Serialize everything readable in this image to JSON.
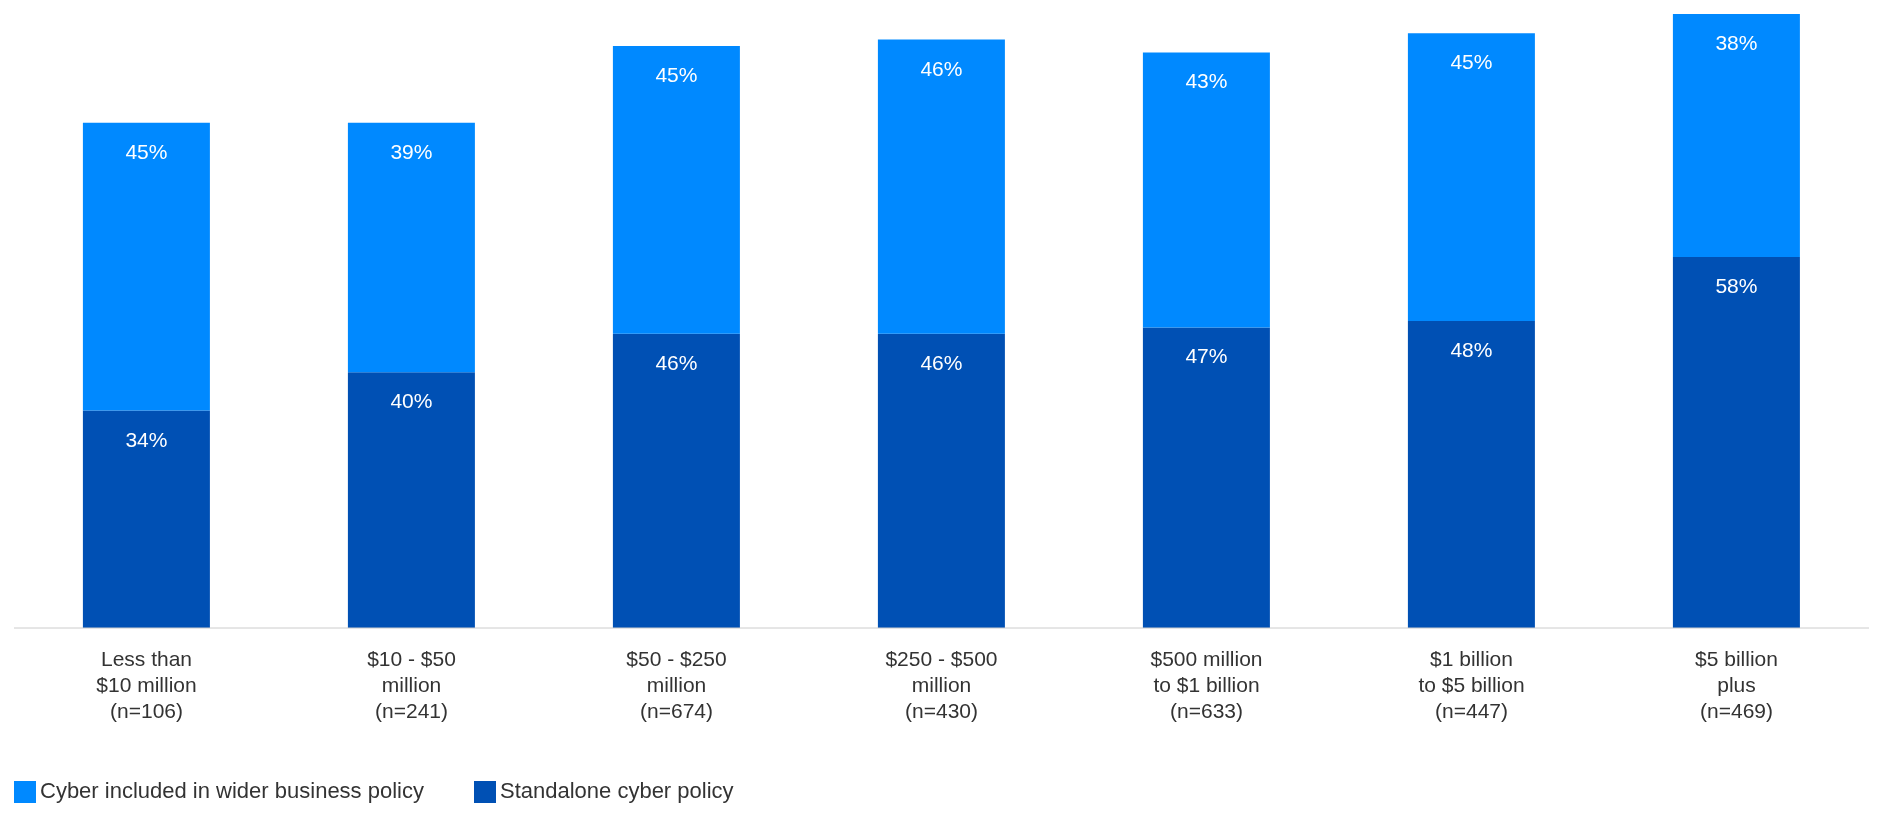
{
  "chart_data": {
    "type": "bar",
    "stacked": true,
    "categories": [
      "Less than\n$10 million\n(n=106)",
      "$10 - $50\nmillion\n(n=241)",
      "$50 - $250\nmillion\n(n=674)",
      "$250 - $500\nmillion\n(n=430)",
      "$500 million\nto $1 billion\n(n=633)",
      "$1 billion\nto $5 billion\n(n=447)",
      "$5 billion\nplus\n(n=469)"
    ],
    "series": [
      {
        "name": "Standalone cyber policy",
        "color": "#0050b4",
        "values": [
          34,
          40,
          46,
          46,
          47,
          48,
          58
        ],
        "value_labels": [
          "34%",
          "40%",
          "46%",
          "46%",
          "47%",
          "48%",
          "58%"
        ]
      },
      {
        "name": "Cyber included in wider business policy",
        "color": "#0089ff",
        "values": [
          45,
          39,
          45,
          46,
          43,
          45,
          38
        ],
        "value_labels": [
          "45%",
          "39%",
          "45%",
          "46%",
          "43%",
          "45%",
          "38%"
        ]
      }
    ],
    "legend": "bottom left",
    "grid": false
  }
}
